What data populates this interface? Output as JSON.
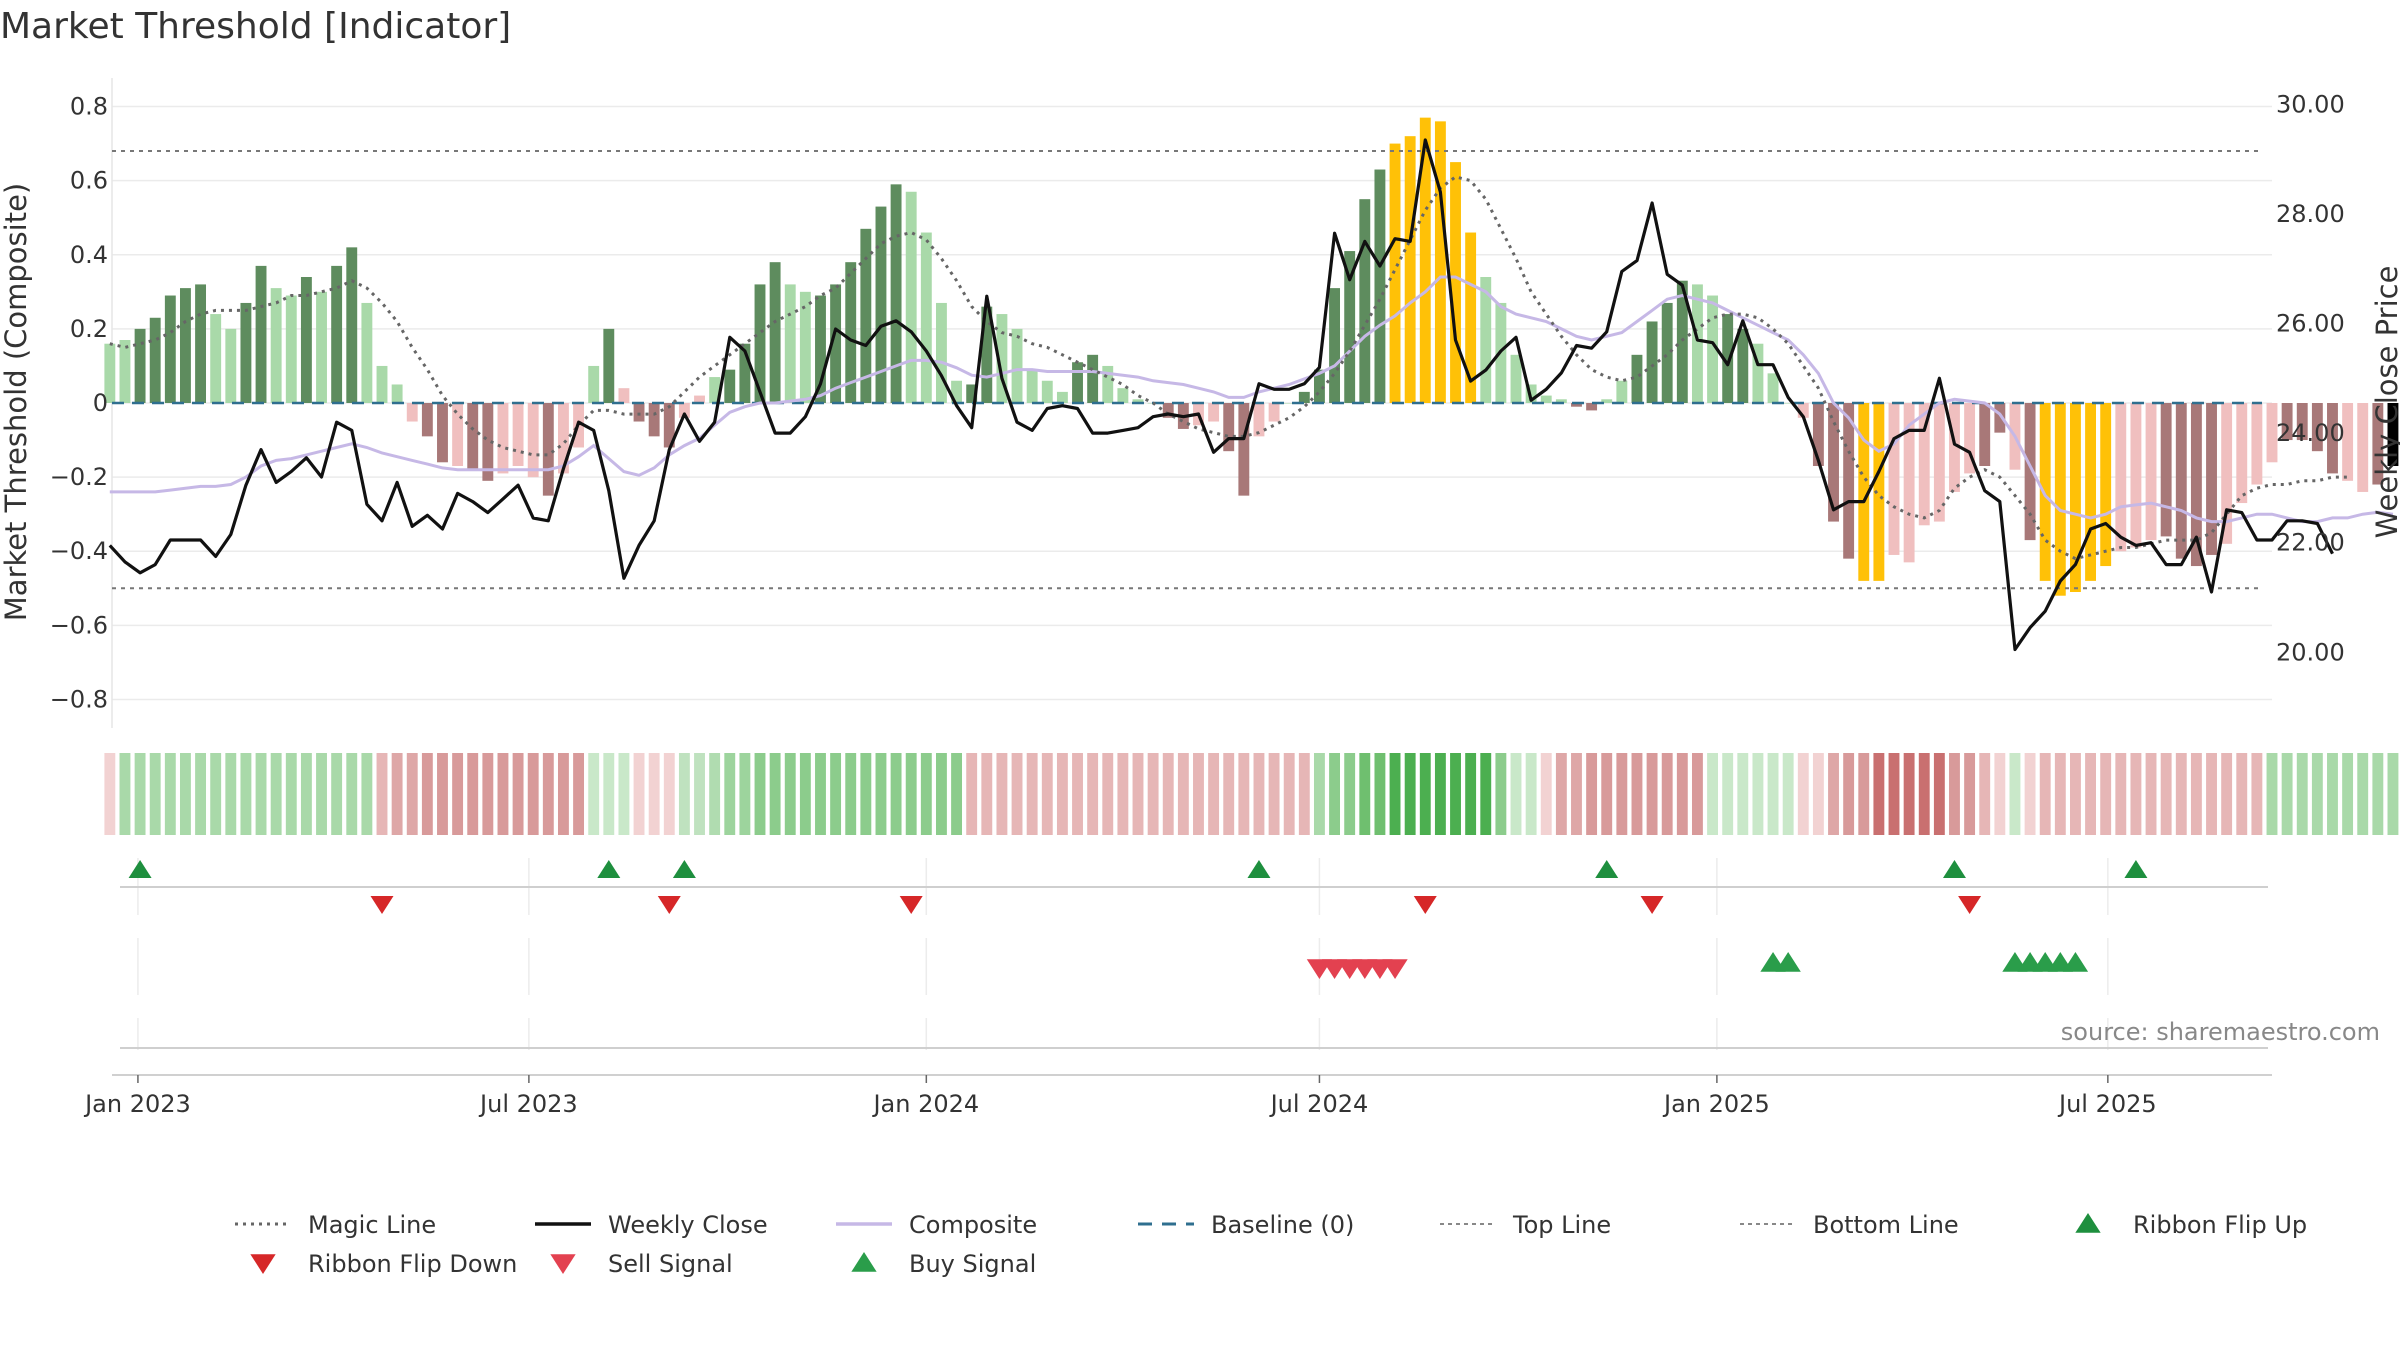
{
  "chart_data": {
    "type": "bar",
    "title": "Market Threshold [Indicator]",
    "ylabel": "Market Threshold (Composite)",
    "y2label": "Weekly Close Price",
    "source": "source: sharemaestro.com",
    "ylim": [
      -0.85,
      0.85
    ],
    "y2lim": [
      18.8,
      30.3
    ],
    "yticks": [
      "0.8",
      "0.6",
      "0.4",
      "0.2",
      "0",
      "−0.2",
      "−0.4",
      "−0.6",
      "−0.8"
    ],
    "y2ticks": [
      "30.00",
      "28.00",
      "26.00",
      "24.00",
      "22.00",
      "20.00"
    ],
    "xrange": [
      "2022-12-20",
      "2025-09-15"
    ],
    "xticks": [
      {
        "label": "Jan 2023",
        "date": "2023-01-01"
      },
      {
        "label": "Jul 2023",
        "date": "2023-07-01"
      },
      {
        "label": "Jan 2024",
        "date": "2024-01-01"
      },
      {
        "label": "Jul 2024",
        "date": "2024-07-01"
      },
      {
        "label": "Jan 2025",
        "date": "2025-01-01"
      },
      {
        "label": "Jul 2025",
        "date": "2025-07-01"
      }
    ],
    "start_date": "2022-12-19",
    "top_line": 0.68,
    "bottom_line": -0.5,
    "composite_bars": [
      0.16,
      0.17,
      0.2,
      0.23,
      0.29,
      0.31,
      0.32,
      0.24,
      0.2,
      0.27,
      0.37,
      0.31,
      0.29,
      0.34,
      0.3,
      0.37,
      0.42,
      0.27,
      0.1,
      0.05,
      -0.05,
      -0.09,
      -0.16,
      -0.17,
      -0.18,
      -0.21,
      -0.19,
      -0.17,
      -0.2,
      -0.25,
      -0.19,
      -0.12,
      0.1,
      0.2,
      0.04,
      -0.05,
      -0.09,
      -0.12,
      -0.04,
      0.02,
      0.07,
      0.09,
      0.16,
      0.32,
      0.38,
      0.32,
      0.3,
      0.29,
      0.32,
      0.38,
      0.47,
      0.53,
      0.59,
      0.57,
      0.46,
      0.27,
      0.06,
      0.05,
      0.26,
      0.24,
      0.2,
      0.09,
      0.06,
      0.03,
      0.11,
      0.13,
      0.1,
      0.04,
      0.01,
      0.0,
      -0.04,
      -0.07,
      -0.06,
      -0.05,
      -0.13,
      -0.25,
      -0.09,
      -0.05,
      0.0,
      0.03,
      0.09,
      0.31,
      0.41,
      0.55,
      0.63,
      0.7,
      0.72,
      0.77,
      0.76,
      0.65,
      0.46,
      0.34,
      0.27,
      0.13,
      0.05,
      0.02,
      0.01,
      -0.01,
      -0.02,
      0.01,
      0.06,
      0.13,
      0.22,
      0.27,
      0.33,
      0.32,
      0.29,
      0.24,
      0.2,
      0.16,
      0.08,
      0.0,
      -0.04,
      -0.17,
      -0.32,
      -0.42,
      -0.48,
      -0.48,
      -0.41,
      -0.43,
      -0.33,
      -0.32,
      -0.24,
      -0.19,
      -0.17,
      -0.08,
      -0.18,
      -0.37,
      -0.48,
      -0.52,
      -0.51,
      -0.48,
      -0.44,
      -0.4,
      -0.39,
      -0.37,
      -0.36,
      -0.42,
      -0.44,
      -0.41,
      -0.38,
      -0.27,
      -0.22,
      -0.16,
      -0.1,
      -0.1,
      -0.13,
      -0.19,
      -0.21,
      -0.24,
      -0.22,
      -0.17,
      -0.18
    ],
    "bar_colors": [
      "#a9d9a9",
      "#a9d9a9",
      "#5e8c5e",
      "#5e8c5e",
      "#5e8c5e",
      "#5e8c5e",
      "#5e8c5e",
      "#a9d9a9",
      "#a9d9a9",
      "#5e8c5e",
      "#5e8c5e",
      "#a9d9a9",
      "#a9d9a9",
      "#5e8c5e",
      "#a9d9a9",
      "#5e8c5e",
      "#5e8c5e",
      "#a9d9a9",
      "#a9d9a9",
      "#a9d9a9",
      "#f0bfbf",
      "#a87878",
      "#a87878",
      "#f0bfbf",
      "#a87878",
      "#a87878",
      "#f0bfbf",
      "#f0bfbf",
      "#f0bfbf",
      "#a87878",
      "#f0bfbf",
      "#f0bfbf",
      "#a9d9a9",
      "#5e8c5e",
      "#f0bfbf",
      "#a87878",
      "#a87878",
      "#a87878",
      "#f0bfbf",
      "#f0bfbf",
      "#a9d9a9",
      "#5e8c5e",
      "#5e8c5e",
      "#5e8c5e",
      "#5e8c5e",
      "#a9d9a9",
      "#a9d9a9",
      "#5e8c5e",
      "#5e8c5e",
      "#5e8c5e",
      "#5e8c5e",
      "#5e8c5e",
      "#5e8c5e",
      "#a9d9a9",
      "#a9d9a9",
      "#a9d9a9",
      "#a9d9a9",
      "#5e8c5e",
      "#5e8c5e",
      "#a9d9a9",
      "#a9d9a9",
      "#a9d9a9",
      "#a9d9a9",
      "#a9d9a9",
      "#5e8c5e",
      "#5e8c5e",
      "#a9d9a9",
      "#a9d9a9",
      "#a9d9a9",
      "#a9d9a9",
      "#a87878",
      "#a87878",
      "#f0bfbf",
      "#f0bfbf",
      "#a87878",
      "#a87878",
      "#f0bfbf",
      "#f0bfbf",
      "#a9d9a9",
      "#5e8c5e",
      "#5e8c5e",
      "#5e8c5e",
      "#5e8c5e",
      "#5e8c5e",
      "#5e8c5e",
      "#ffc107",
      "#ffc107",
      "#ffc107",
      "#ffc107",
      "#ffc107",
      "#ffc107",
      "#a9d9a9",
      "#a9d9a9",
      "#a9d9a9",
      "#a9d9a9",
      "#a9d9a9",
      "#a9d9a9",
      "#a87878",
      "#a87878",
      "#a9d9a9",
      "#a9d9a9",
      "#5e8c5e",
      "#5e8c5e",
      "#5e8c5e",
      "#5e8c5e",
      "#a9d9a9",
      "#a9d9a9",
      "#5e8c5e",
      "#5e8c5e",
      "#a9d9a9",
      "#a9d9a9",
      "#a9d9a9",
      "#f0bfbf",
      "#a87878",
      "#a87878",
      "#a87878",
      "#ffc107",
      "#ffc107",
      "#f0bfbf",
      "#f0bfbf",
      "#f0bfbf",
      "#f0bfbf",
      "#f0bfbf",
      "#f0bfbf",
      "#a87878",
      "#a87878",
      "#f0bfbf",
      "#a87878",
      "#ffc107",
      "#ffc107",
      "#ffc107",
      "#ffc107",
      "#ffc107",
      "#f0bfbf",
      "#f0bfbf",
      "#f0bfbf",
      "#a87878",
      "#a87878",
      "#a87878",
      "#a87878",
      "#f0bfbf",
      "#f0bfbf",
      "#f0bfbf",
      "#f0bfbf",
      "#a87878",
      "#a87878",
      "#a87878",
      "#a87878",
      "#f0bfbf",
      "#f0bfbf",
      "#a87878"
    ],
    "magic_line": [
      0.16,
      0.15,
      0.16,
      0.17,
      0.19,
      0.22,
      0.24,
      0.25,
      0.25,
      0.25,
      0.26,
      0.27,
      0.29,
      0.29,
      0.3,
      0.31,
      0.33,
      0.31,
      0.27,
      0.22,
      0.15,
      0.09,
      0.02,
      -0.03,
      -0.07,
      -0.1,
      -0.12,
      -0.13,
      -0.14,
      -0.14,
      -0.11,
      -0.06,
      -0.02,
      -0.02,
      -0.03,
      -0.03,
      -0.03,
      -0.01,
      0.03,
      0.07,
      0.1,
      0.13,
      0.16,
      0.19,
      0.22,
      0.24,
      0.26,
      0.29,
      0.31,
      0.35,
      0.39,
      0.43,
      0.45,
      0.46,
      0.44,
      0.39,
      0.33,
      0.26,
      0.22,
      0.19,
      0.18,
      0.16,
      0.15,
      0.13,
      0.11,
      0.09,
      0.07,
      0.05,
      0.02,
      0.0,
      -0.03,
      -0.05,
      -0.07,
      -0.08,
      -0.09,
      -0.09,
      -0.08,
      -0.06,
      -0.04,
      -0.01,
      0.03,
      0.08,
      0.14,
      0.21,
      0.28,
      0.36,
      0.44,
      0.52,
      0.58,
      0.61,
      0.6,
      0.55,
      0.47,
      0.39,
      0.3,
      0.24,
      0.18,
      0.13,
      0.09,
      0.07,
      0.06,
      0.07,
      0.1,
      0.13,
      0.17,
      0.2,
      0.23,
      0.24,
      0.24,
      0.23,
      0.2,
      0.16,
      0.1,
      0.04,
      -0.05,
      -0.13,
      -0.2,
      -0.25,
      -0.28,
      -0.3,
      -0.31,
      -0.29,
      -0.23,
      -0.2,
      -0.18,
      -0.2,
      -0.25,
      -0.3,
      -0.37,
      -0.4,
      -0.42,
      -0.41,
      -0.4,
      -0.39,
      -0.39,
      -0.38,
      -0.37,
      -0.37,
      -0.37,
      -0.35,
      -0.3,
      -0.25,
      -0.23,
      -0.22,
      -0.22,
      -0.21,
      -0.21,
      -0.2,
      -0.2
    ],
    "weekly_close": [
      21.95,
      21.65,
      21.45,
      21.6,
      22.05,
      22.05,
      22.05,
      21.75,
      22.15,
      23.05,
      23.7,
      23.1,
      23.3,
      23.55,
      23.2,
      24.2,
      24.05,
      22.7,
      22.4,
      23.1,
      22.3,
      22.5,
      22.25,
      22.9,
      22.75,
      22.55,
      22.8,
      23.05,
      22.45,
      22.4,
      23.35,
      24.2,
      24.05,
      22.95,
      21.35,
      21.95,
      22.4,
      23.7,
      24.35,
      23.85,
      24.2,
      25.75,
      25.5,
      24.75,
      24.0,
      24.0,
      24.3,
      24.9,
      25.9,
      25.7,
      25.6,
      25.95,
      26.05,
      25.85,
      25.5,
      25.05,
      24.5,
      24.1,
      26.5,
      25.0,
      24.2,
      24.05,
      24.45,
      24.5,
      24.45,
      24.0,
      24.0,
      24.05,
      24.1,
      24.3,
      24.35,
      24.3,
      24.35,
      23.65,
      23.9,
      23.9,
      24.9,
      24.8,
      24.8,
      24.9,
      25.2,
      27.65,
      26.8,
      27.5,
      27.05,
      27.55,
      27.5,
      29.35,
      28.4,
      25.7,
      24.95,
      25.15,
      25.5,
      25.75,
      24.6,
      24.8,
      25.1,
      25.6,
      25.55,
      25.85,
      26.95,
      27.15,
      28.2,
      26.9,
      26.7,
      25.7,
      25.65,
      25.25,
      26.05,
      25.25,
      25.25,
      24.65,
      24.3,
      23.5,
      22.6,
      22.75,
      22.75,
      23.3,
      23.9,
      24.05,
      24.05,
      25.0,
      23.8,
      23.65,
      22.95,
      22.75,
      20.05,
      20.45,
      20.75,
      21.3,
      21.6,
      22.25,
      22.35,
      22.1,
      21.95,
      22.0,
      21.6,
      21.6,
      22.1,
      21.1,
      22.6,
      22.55,
      22.05,
      22.05,
      22.4,
      22.4,
      22.35,
      21.8
    ],
    "composite_line": [
      -0.24,
      -0.24,
      -0.24,
      -0.24,
      -0.235,
      -0.23,
      -0.225,
      -0.225,
      -0.22,
      -0.2,
      -0.17,
      -0.155,
      -0.15,
      -0.14,
      -0.13,
      -0.12,
      -0.11,
      -0.12,
      -0.135,
      -0.145,
      -0.155,
      -0.165,
      -0.175,
      -0.18,
      -0.18,
      -0.18,
      -0.18,
      -0.18,
      -0.18,
      -0.18,
      -0.17,
      -0.145,
      -0.115,
      -0.15,
      -0.185,
      -0.195,
      -0.175,
      -0.14,
      -0.115,
      -0.095,
      -0.06,
      -0.025,
      -0.01,
      0.0,
      0.0,
      0.005,
      0.01,
      0.02,
      0.04,
      0.055,
      0.07,
      0.085,
      0.1,
      0.115,
      0.115,
      0.11,
      0.095,
      0.075,
      0.07,
      0.08,
      0.09,
      0.09,
      0.085,
      0.085,
      0.085,
      0.085,
      0.08,
      0.075,
      0.07,
      0.06,
      0.055,
      0.05,
      0.04,
      0.03,
      0.015,
      0.015,
      0.03,
      0.04,
      0.05,
      0.065,
      0.08,
      0.1,
      0.14,
      0.18,
      0.21,
      0.235,
      0.27,
      0.3,
      0.34,
      0.34,
      0.32,
      0.3,
      0.26,
      0.24,
      0.23,
      0.22,
      0.2,
      0.18,
      0.17,
      0.18,
      0.19,
      0.22,
      0.25,
      0.28,
      0.29,
      0.28,
      0.27,
      0.25,
      0.23,
      0.21,
      0.19,
      0.17,
      0.13,
      0.08,
      0.0,
      -0.04,
      -0.1,
      -0.13,
      -0.11,
      -0.06,
      -0.03,
      0.0,
      0.01,
      0.005,
      0.0,
      -0.03,
      -0.09,
      -0.17,
      -0.25,
      -0.29,
      -0.3,
      -0.31,
      -0.3,
      -0.28,
      -0.275,
      -0.27,
      -0.28,
      -0.29,
      -0.31,
      -0.32,
      -0.32,
      -0.31,
      -0.3,
      -0.3,
      -0.31,
      -0.32,
      -0.32,
      -0.31,
      -0.31,
      -0.3,
      -0.295,
      -0.3
    ],
    "ribbon": {
      "colors": [
        "#f2d2d2",
        "#a9d9a9",
        "#a9d9a9",
        "#a9d9a9",
        "#a9d9a9",
        "#a9d9a9",
        "#a9d9a9",
        "#a9d9a9",
        "#a9d9a9",
        "#a9d9a9",
        "#a9d9a9",
        "#a9d9a9",
        "#a9d9a9",
        "#a9d9a9",
        "#a9d9a9",
        "#a9d9a9",
        "#a9d9a9",
        "#a9d9a9",
        "#e6b6b6",
        "#dea7a7",
        "#dea7a7",
        "#d89a9a",
        "#d89a9a",
        "#d89a9a",
        "#d89a9a",
        "#d89a9a",
        "#d89a9a",
        "#d89a9a",
        "#d89a9a",
        "#d89a9a",
        "#d89a9a",
        "#d89a9a",
        "#c9e8c9",
        "#c9e8c9",
        "#c9e8c9",
        "#f2d2d2",
        "#f2d2d2",
        "#f2d2d2",
        "#bfe2bf",
        "#bfe2bf",
        "#b0dcb0",
        "#9dd49d",
        "#9dd49d",
        "#8ccc8c",
        "#8ccc8c",
        "#8ccc8c",
        "#8ccc8c",
        "#8ccc8c",
        "#8ccc8c",
        "#8ccc8c",
        "#8ccc8c",
        "#8ccc8c",
        "#8ccc8c",
        "#8ccc8c",
        "#8ccc8c",
        "#8ccc8c",
        "#8ccc8c",
        "#e6b6b6",
        "#e6b6b6",
        "#e6b6b6",
        "#e6b6b6",
        "#e6b6b6",
        "#e6b6b6",
        "#e6b6b6",
        "#e6b6b6",
        "#e6b6b6",
        "#e6b6b6",
        "#e6b6b6",
        "#e6b6b6",
        "#e6b6b6",
        "#e6b6b6",
        "#e6b6b6",
        "#e6b6b6",
        "#e6b6b6",
        "#e6b6b6",
        "#e6b6b6",
        "#e6b6b6",
        "#e6b6b6",
        "#e6b6b6",
        "#e6b6b6",
        "#a9d9a9",
        "#8ccc8c",
        "#8ccc8c",
        "#6fbf6f",
        "#6fbf6f",
        "#4caf50",
        "#4caf50",
        "#4caf50",
        "#4caf50",
        "#4caf50",
        "#4caf50",
        "#4caf50",
        "#8ccc8c",
        "#c9e8c9",
        "#c9e8c9",
        "#f2d2d2",
        "#dea7a7",
        "#dea7a7",
        "#d89a9a",
        "#d89a9a",
        "#d89a9a",
        "#d89a9a",
        "#d89a9a",
        "#d89a9a",
        "#d89a9a",
        "#d89a9a",
        "#c9e8c9",
        "#c9e8c9",
        "#c9e8c9",
        "#c9e8c9",
        "#c9e8c9",
        "#c9e8c9",
        "#f2d2d2",
        "#f2d2d2",
        "#dea7a7",
        "#d89a9a",
        "#d89a9a",
        "#c97070",
        "#c97070",
        "#c97070",
        "#c97070",
        "#c97070",
        "#d89a9a",
        "#d89a9a",
        "#e6b6b6",
        "#f2d2d2",
        "#c9e8c9",
        "#f2d2d2",
        "#e6b6b6",
        "#e6b6b6",
        "#e6b6b6",
        "#e6b6b6",
        "#e6b6b6",
        "#e6b6b6",
        "#e6b6b6",
        "#e6b6b6",
        "#e6b6b6",
        "#e6b6b6",
        "#e6b6b6",
        "#e6b6b6",
        "#e6b6b6",
        "#e6b6b6",
        "#e6b6b6",
        "#a9d9a9",
        "#a9d9a9",
        "#a9d9a9",
        "#a9d9a9",
        "#a9d9a9",
        "#a9d9a9",
        "#a9d9a9",
        "#a9d9a9",
        "#a9d9a9",
        "#a9d9a9"
      ]
    },
    "ribbon_flip_up": [
      "2023-01-02",
      "2023-08-07",
      "2023-09-11",
      "2024-06-03",
      "2024-11-11",
      "2025-04-21",
      "2025-07-14"
    ],
    "ribbon_flip_down": [
      "2023-04-24",
      "2023-09-04",
      "2023-12-25",
      "2024-08-19",
      "2024-12-02",
      "2025-04-28"
    ],
    "sell_signals": [
      "2024-07-01",
      "2024-07-08",
      "2024-07-15",
      "2024-07-22",
      "2024-07-29",
      "2024-08-05"
    ],
    "buy_signals": [
      "2025-01-27",
      "2025-02-03",
      "2025-05-19",
      "2025-05-26",
      "2025-06-02",
      "2025-06-09",
      "2025-06-16"
    ],
    "legend": [
      {
        "label": "Magic Line",
        "type": "dotted",
        "color": "#666666"
      },
      {
        "label": "Weekly Close",
        "type": "solid",
        "color": "#111111"
      },
      {
        "label": "Composite",
        "type": "solid",
        "color": "#c6b8e6"
      },
      {
        "label": "Baseline (0)",
        "type": "dashed",
        "color": "#2f6f8f"
      },
      {
        "label": "Top Line",
        "type": "dotted-thin",
        "color": "#888888"
      },
      {
        "label": "Bottom Line",
        "type": "dotted-thin",
        "color": "#888888"
      },
      {
        "label": "Ribbon Flip Up",
        "type": "triangle-up",
        "color": "#1e8f3e"
      },
      {
        "label": "Ribbon Flip Down",
        "type": "triangle-down",
        "color": "#d62728"
      },
      {
        "label": "Sell Signal",
        "type": "triangle-down",
        "color": "#e34150"
      },
      {
        "label": "Buy Signal",
        "type": "triangle-up",
        "color": "#2a9d4a"
      }
    ]
  }
}
